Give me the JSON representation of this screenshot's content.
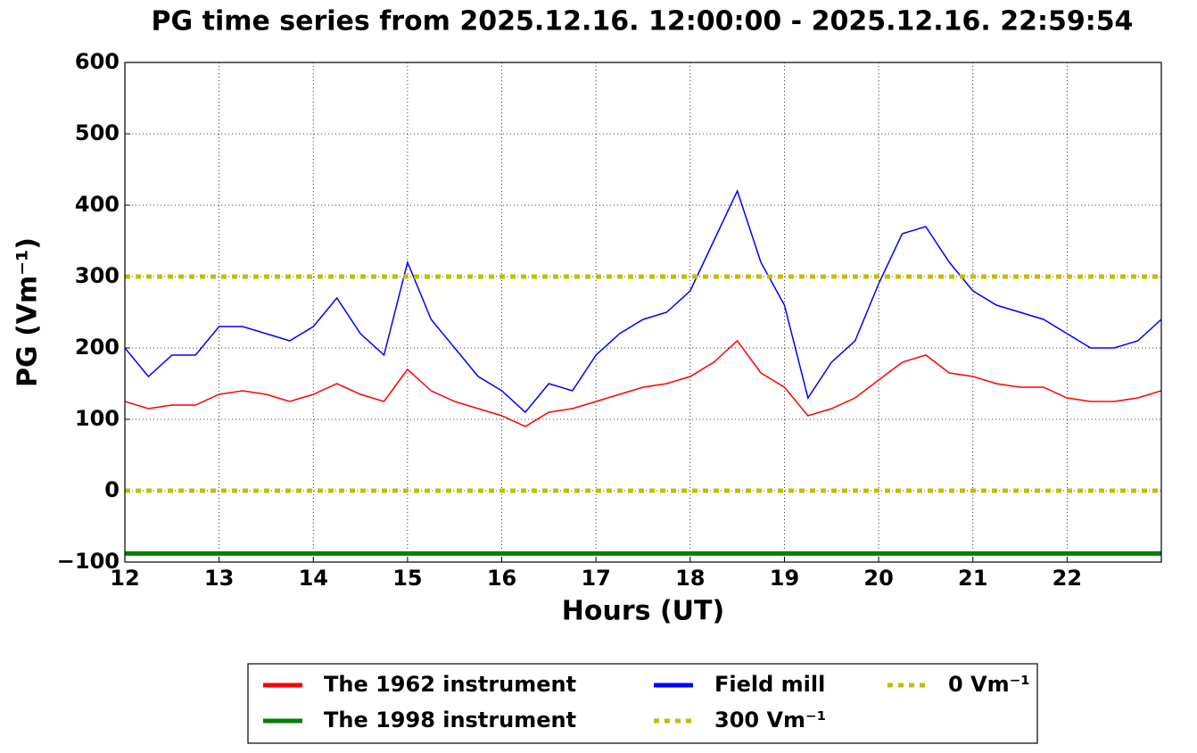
{
  "chart_data": {
    "type": "line",
    "title": "PG time series from 2025.12.16. 12:00:00 - 2025.12.16. 22:59:54",
    "x_label": "Hours (UT)",
    "y_label": "PG (Vm⁻¹)",
    "x": [
      12,
      12.25,
      12.5,
      12.75,
      13,
      13.25,
      13.5,
      13.75,
      14,
      14.25,
      14.5,
      14.75,
      15,
      15.25,
      15.5,
      15.75,
      16,
      16.25,
      16.5,
      16.75,
      17,
      17.25,
      17.5,
      17.75,
      18,
      18.25,
      18.5,
      18.75,
      19,
      19.25,
      19.5,
      19.75,
      20,
      20.25,
      20.5,
      20.75,
      21,
      21.25,
      21.5,
      21.75,
      22,
      22.25,
      22.5,
      22.75,
      23
    ],
    "series": [
      {
        "name": "The 1962 instrument",
        "color": "#ff0000",
        "linestyle": "solid",
        "width": 1.5,
        "values": [
          125,
          115,
          120,
          120,
          135,
          140,
          135,
          125,
          135,
          150,
          135,
          125,
          170,
          140,
          125,
          115,
          105,
          90,
          110,
          115,
          125,
          135,
          145,
          150,
          160,
          180,
          210,
          165,
          145,
          105,
          115,
          130,
          155,
          180,
          190,
          165,
          160,
          150,
          145,
          145,
          130,
          125,
          125,
          130,
          140
        ]
      },
      {
        "name": "The 1998 instrument",
        "color": "#008000",
        "linestyle": "solid",
        "width": 5,
        "values": [
          -88,
          -88,
          -88,
          -88,
          -88,
          -88,
          -88,
          -88,
          -88,
          -88,
          -88,
          -88,
          -88,
          -88,
          -88,
          -88,
          -88,
          -88,
          -88,
          -88,
          -88,
          -88,
          -88,
          -88,
          -88,
          -88,
          -88,
          -88,
          -88,
          -88,
          -88,
          -88,
          -88,
          -88,
          -88,
          -88,
          -88,
          -88,
          -88,
          -88,
          -88,
          -88,
          -88,
          -88,
          -88
        ]
      },
      {
        "name": "Field mill",
        "color": "#0000ff",
        "linestyle": "solid",
        "width": 1.5,
        "values": [
          200,
          160,
          190,
          190,
          230,
          230,
          220,
          210,
          230,
          270,
          220,
          190,
          320,
          240,
          200,
          160,
          140,
          110,
          150,
          140,
          190,
          220,
          240,
          250,
          280,
          350,
          420,
          320,
          260,
          130,
          180,
          210,
          290,
          360,
          370,
          320,
          280,
          260,
          250,
          240,
          220,
          200,
          200,
          210,
          240
        ]
      },
      {
        "name": "300 Vm⁻¹",
        "color": "#bfbf00",
        "linestyle": "dotted",
        "width": 5,
        "values": [
          300,
          300,
          300,
          300,
          300,
          300,
          300,
          300,
          300,
          300,
          300,
          300,
          300,
          300,
          300,
          300,
          300,
          300,
          300,
          300,
          300,
          300,
          300,
          300,
          300,
          300,
          300,
          300,
          300,
          300,
          300,
          300,
          300,
          300,
          300,
          300,
          300,
          300,
          300,
          300,
          300,
          300,
          300,
          300,
          300
        ]
      },
      {
        "name": "0 Vm⁻¹",
        "color": "#bfbf00",
        "linestyle": "dotted",
        "width": 5,
        "values": [
          0,
          0,
          0,
          0,
          0,
          0,
          0,
          0,
          0,
          0,
          0,
          0,
          0,
          0,
          0,
          0,
          0,
          0,
          0,
          0,
          0,
          0,
          0,
          0,
          0,
          0,
          0,
          0,
          0,
          0,
          0,
          0,
          0,
          0,
          0,
          0,
          0,
          0,
          0,
          0,
          0,
          0,
          0,
          0,
          0
        ]
      }
    ],
    "xlim": [
      12,
      23
    ],
    "xticks": [
      12,
      13,
      14,
      15,
      16,
      17,
      18,
      19,
      20,
      21,
      22
    ],
    "ylim": [
      -100,
      600
    ],
    "yticks": [
      {
        "value": -100,
        "label": "−100"
      },
      0,
      100,
      200,
      300,
      400,
      500,
      600
    ],
    "grid": true,
    "legend": "below"
  }
}
